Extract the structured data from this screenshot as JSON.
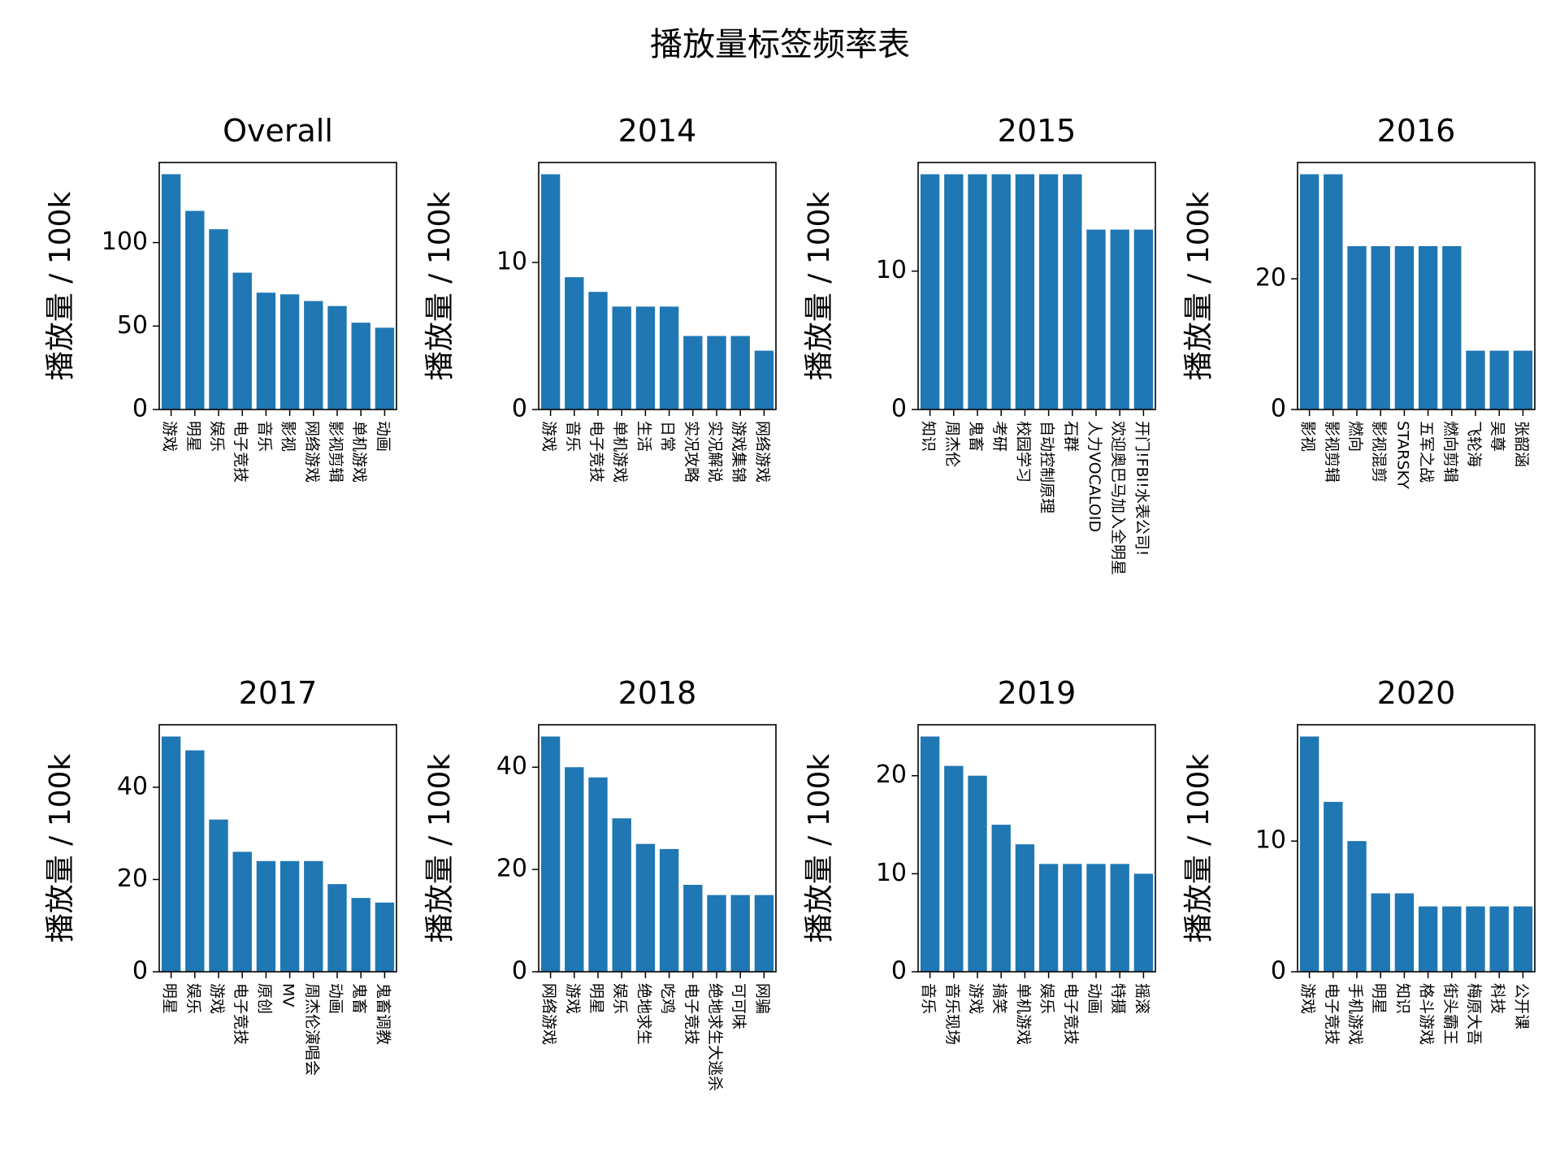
{
  "figure": {
    "title": "播放量标签频率表"
  },
  "chart_data": [
    {
      "type": "bar",
      "title": "Overall",
      "ylabel": "播放量 / 100k",
      "categories": [
        "游戏",
        "明星",
        "娱乐",
        "电子竞技",
        "音乐",
        "影视",
        "网络游戏",
        "影视剪辑",
        "单机游戏",
        "动画"
      ],
      "values": [
        141,
        119,
        108,
        82,
        70,
        69,
        65,
        62,
        52,
        49
      ],
      "ylim": [
        0,
        148
      ],
      "yticks": [
        0,
        50,
        100
      ],
      "color": "#1f77b4",
      "grid": false
    },
    {
      "type": "bar",
      "title": "2014",
      "ylabel": "播放量 / 100k",
      "categories": [
        "游戏",
        "音乐",
        "电子竞技",
        "单机游戏",
        "生活",
        "日常",
        "实况攻略",
        "实况解说",
        "游戏集锦",
        "网络游戏"
      ],
      "values": [
        16,
        9,
        8,
        7,
        7,
        7,
        5,
        5,
        5,
        4
      ],
      "ylim": [
        0,
        16.8
      ],
      "yticks": [
        0,
        10
      ],
      "color": "#1f77b4",
      "grid": false
    },
    {
      "type": "bar",
      "title": "2015",
      "ylabel": "播放量 / 100k",
      "categories": [
        "知识",
        "周杰伦",
        "鬼畜",
        "考研",
        "校园学习",
        "自动控制原理",
        "石群",
        "人力VOCALOID",
        "欢迎奥巴马加入全明星",
        "开门!FBI!水表公司!"
      ],
      "values": [
        17,
        17,
        17,
        17,
        17,
        17,
        17,
        13,
        13,
        13
      ],
      "ylim": [
        0,
        17.85
      ],
      "yticks": [
        0,
        10
      ],
      "color": "#1f77b4",
      "grid": false
    },
    {
      "type": "bar",
      "title": "2016",
      "ylabel": "播放量 / 100k",
      "categories": [
        "影视",
        "影视剪辑",
        "燃向",
        "影视混剪",
        "STARSKY",
        "五军之战",
        "燃向剪辑",
        "飞轮海",
        "吴尊",
        "张韶涵"
      ],
      "values": [
        36,
        36,
        25,
        25,
        25,
        25,
        25,
        9,
        9,
        9
      ],
      "ylim": [
        0,
        37.8
      ],
      "yticks": [
        0,
        20
      ],
      "color": "#1f77b4",
      "grid": false
    },
    {
      "type": "bar",
      "title": "2017",
      "ylabel": "播放量 / 100k",
      "categories": [
        "明星",
        "娱乐",
        "游戏",
        "电子竞技",
        "原创",
        "MV",
        "周杰伦演唱会",
        "动画",
        "鬼畜",
        "鬼畜调教"
      ],
      "values": [
        51,
        48,
        33,
        26,
        24,
        24,
        24,
        19,
        16,
        15
      ],
      "ylim": [
        0,
        53.55
      ],
      "yticks": [
        0,
        20,
        40
      ],
      "color": "#1f77b4",
      "grid": false
    },
    {
      "type": "bar",
      "title": "2018",
      "ylabel": "播放量 / 100k",
      "categories": [
        "网络游戏",
        "游戏",
        "明星",
        "娱乐",
        "绝地求生",
        "吃鸡",
        "电子竞技",
        "绝地求生大逃杀",
        "可可味",
        "网骗"
      ],
      "values": [
        46,
        40,
        38,
        30,
        25,
        24,
        17,
        15,
        15,
        15
      ],
      "ylim": [
        0,
        48.3
      ],
      "yticks": [
        0,
        20,
        40
      ],
      "color": "#1f77b4",
      "grid": false
    },
    {
      "type": "bar",
      "title": "2019",
      "ylabel": "播放量 / 100k",
      "categories": [
        "音乐",
        "音乐现场",
        "游戏",
        "搞笑",
        "单机游戏",
        "娱乐",
        "电子竞技",
        "动画",
        "特摄",
        "摇滚"
      ],
      "values": [
        24,
        21,
        20,
        15,
        13,
        11,
        11,
        11,
        11,
        10
      ],
      "ylim": [
        0,
        25.2
      ],
      "yticks": [
        0,
        10,
        20
      ],
      "color": "#1f77b4",
      "grid": false
    },
    {
      "type": "bar",
      "title": "2020",
      "ylabel": "播放量 / 100k",
      "categories": [
        "游戏",
        "电子竞技",
        "手机游戏",
        "明星",
        "知识",
        "格斗游戏",
        "街头霸王",
        "梅原大吾",
        "科技",
        "公开课"
      ],
      "values": [
        18,
        13,
        10,
        6,
        6,
        5,
        5,
        5,
        5,
        5
      ],
      "ylim": [
        0,
        18.9
      ],
      "yticks": [
        0,
        10
      ],
      "color": "#1f77b4",
      "grid": false
    }
  ]
}
